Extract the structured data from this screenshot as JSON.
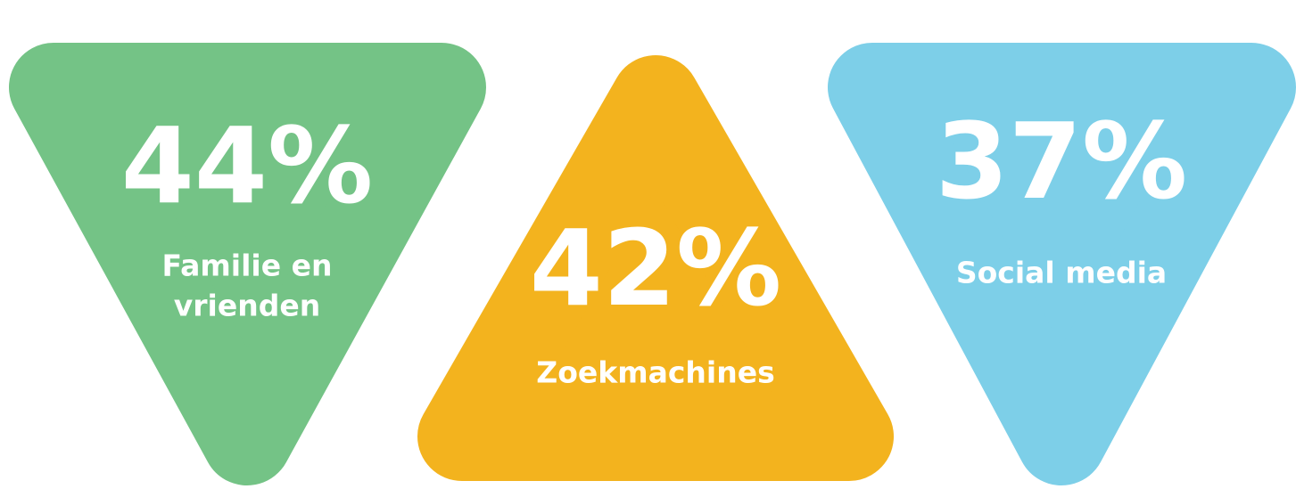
{
  "items": [
    {
      "value": "44%",
      "label": [
        "Familie en",
        "vrienden"
      ]
    },
    {
      "value": "42%",
      "label": [
        "Zoekmachines"
      ]
    },
    {
      "value": "37%",
      "label": [
        "Social media"
      ]
    }
  ]
}
